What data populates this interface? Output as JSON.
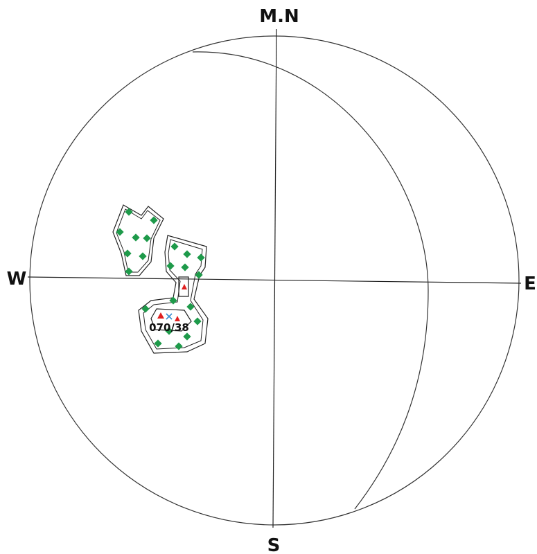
{
  "directions": {
    "north": "M.N",
    "south": "S",
    "east": "E",
    "west": "W"
  },
  "annotation": {
    "label": "070/38"
  },
  "colors": {
    "pole": "#1e9a4a",
    "mean_marker": "#e02020",
    "mean_cross": "#3a8fd0",
    "line": "#222222"
  }
}
